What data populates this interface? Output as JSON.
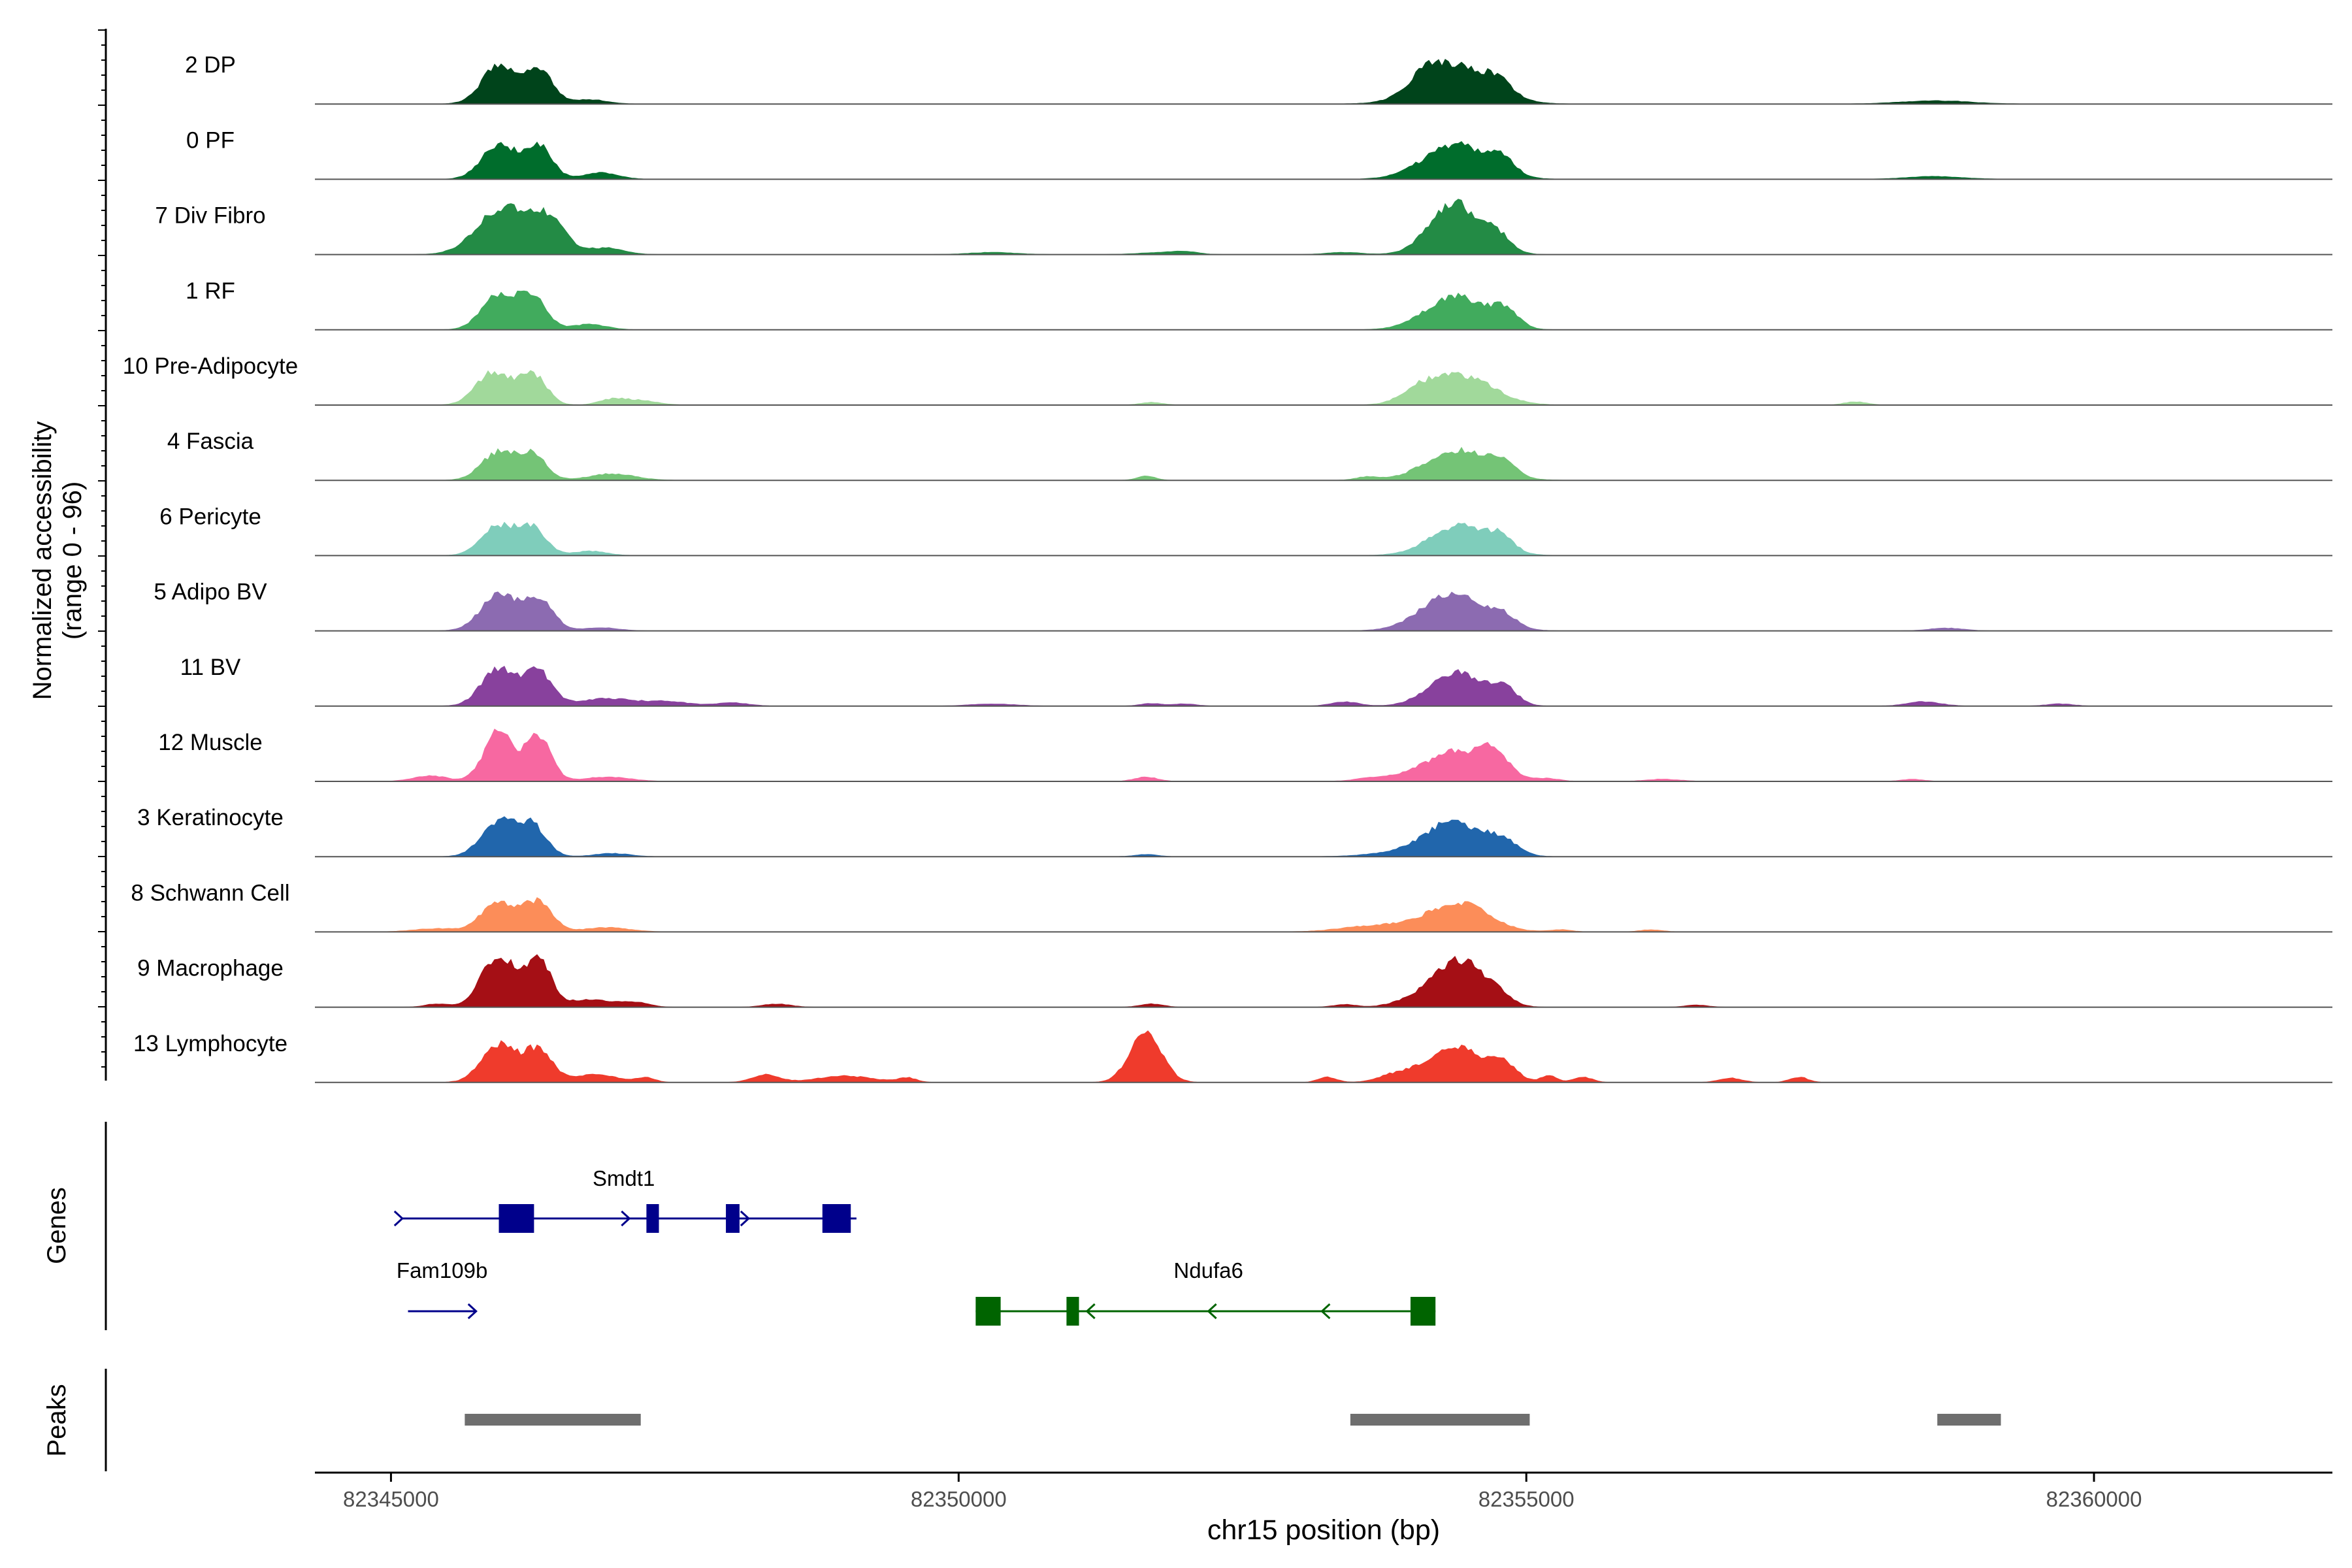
{
  "chart_data": {
    "type": "area",
    "title": "",
    "chromosome": "chr15",
    "xlabel": "chr15 position (bp)",
    "ylabel_line1": "Normalized accessibility",
    "ylabel_line2": "(range 0 - 96)",
    "ylim": [
      0,
      96
    ],
    "xlim": [
      82344330,
      82362100
    ],
    "x_ticks": [
      82345000,
      82350000,
      82355000,
      82360000
    ],
    "x_tick_labels": [
      "82345000",
      "82350000",
      "82355000",
      "82360000"
    ],
    "genes_label": "Genes",
    "peaks_label": "Peaks",
    "tracks": [
      {
        "name": "2 DP",
        "color": "#00441b",
        "peaks": [
          [
            82345950,
            150,
            70
          ],
          [
            82346300,
            120,
            65
          ],
          [
            82354380,
            300,
            68
          ],
          [
            82354120,
            150,
            25
          ],
          [
            82354750,
            120,
            22
          ],
          [
            82346750,
            150,
            8
          ],
          [
            82358600,
            300,
            6
          ]
        ]
      },
      {
        "name": "0 PF",
        "color": "#006d2c",
        "peaks": [
          [
            82345950,
            150,
            65
          ],
          [
            82346300,
            120,
            60
          ],
          [
            82354380,
            280,
            64
          ],
          [
            82354780,
            110,
            28
          ],
          [
            82346850,
            150,
            12
          ],
          [
            82358600,
            250,
            5
          ]
        ]
      },
      {
        "name": "7 Div Fibro",
        "color": "#238b45",
        "peaks": [
          [
            82345980,
            220,
            85
          ],
          [
            82346380,
            160,
            60
          ],
          [
            82354360,
            210,
            96
          ],
          [
            82354750,
            120,
            30
          ],
          [
            82346900,
            150,
            12
          ],
          [
            82350300,
            200,
            4
          ],
          [
            82351800,
            200,
            4
          ],
          [
            82352000,
            100,
            4
          ],
          [
            82353400,
            150,
            4
          ]
        ]
      },
      {
        "name": "1 RF",
        "color": "#41ab5d",
        "peaks": [
          [
            82345950,
            150,
            64
          ],
          [
            82346250,
            120,
            58
          ],
          [
            82354380,
            260,
            62
          ],
          [
            82354820,
            110,
            30
          ],
          [
            82346750,
            150,
            10
          ]
        ]
      },
      {
        "name": "10 Pre-Adipocyte",
        "color": "#a1d99b",
        "peaks": [
          [
            82345900,
            150,
            60
          ],
          [
            82346250,
            120,
            55
          ],
          [
            82354420,
            280,
            55
          ],
          [
            82354050,
            150,
            18
          ],
          [
            82346950,
            120,
            10
          ],
          [
            82347200,
            150,
            8
          ],
          [
            82351700,
            100,
            5
          ],
          [
            82357900,
            100,
            6
          ]
        ]
      },
      {
        "name": "4 Fascia",
        "color": "#74c476",
        "peaks": [
          [
            82345950,
            150,
            52
          ],
          [
            82346250,
            120,
            45
          ],
          [
            82354400,
            280,
            55
          ],
          [
            82354800,
            110,
            22
          ],
          [
            82346950,
            200,
            12
          ],
          [
            82351650,
            80,
            8
          ],
          [
            82353600,
            100,
            6
          ]
        ]
      },
      {
        "name": "6 Pericyte",
        "color": "#7fcdbb",
        "peaks": [
          [
            82345950,
            150,
            55
          ],
          [
            82346250,
            120,
            48
          ],
          [
            82354420,
            260,
            55
          ],
          [
            82354780,
            110,
            22
          ],
          [
            82346750,
            150,
            8
          ]
        ]
      },
      {
        "name": "5 Adipo BV",
        "color": "#8c6bb1",
        "peaks": [
          [
            82345950,
            160,
            65
          ],
          [
            82346300,
            130,
            58
          ],
          [
            82354360,
            270,
            70
          ],
          [
            82354800,
            120,
            18
          ],
          [
            82346850,
            150,
            6
          ],
          [
            82358700,
            150,
            5
          ]
        ]
      },
      {
        "name": "11 BV",
        "color": "#88419d",
        "peaks": [
          [
            82345950,
            150,
            70
          ],
          [
            82346300,
            120,
            62
          ],
          [
            82354380,
            230,
            62
          ],
          [
            82354800,
            120,
            30
          ],
          [
            82346900,
            250,
            14
          ],
          [
            82347450,
            180,
            8
          ],
          [
            82348000,
            150,
            6
          ],
          [
            82350300,
            200,
            4
          ],
          [
            82351700,
            100,
            5
          ],
          [
            82352000,
            100,
            4
          ],
          [
            82353400,
            120,
            8
          ],
          [
            82358500,
            150,
            8
          ],
          [
            82359700,
            120,
            4
          ]
        ]
      },
      {
        "name": "12 Muscle",
        "color": "#f768a1",
        "peaks": [
          [
            82345950,
            130,
            92
          ],
          [
            82346300,
            110,
            84
          ],
          [
            82354400,
            300,
            56
          ],
          [
            82354720,
            110,
            32
          ],
          [
            82345350,
            150,
            10
          ],
          [
            82346900,
            200,
            8
          ],
          [
            82351650,
            100,
            8
          ],
          [
            82353650,
            150,
            6
          ],
          [
            82355200,
            100,
            4
          ],
          [
            82356200,
            150,
            4
          ],
          [
            82358400,
            100,
            4
          ]
        ]
      },
      {
        "name": "3 Keratinocyte",
        "color": "#2166ac",
        "peaks": [
          [
            82345950,
            150,
            65
          ],
          [
            82346250,
            120,
            55
          ],
          [
            82354360,
            260,
            64
          ],
          [
            82354800,
            130,
            22
          ],
          [
            82346950,
            150,
            6
          ],
          [
            82351650,
            100,
            4
          ],
          [
            82353800,
            250,
            5
          ]
        ]
      },
      {
        "name": "8 Schwann Cell",
        "color": "#fc8d59",
        "peaks": [
          [
            82345950,
            150,
            55
          ],
          [
            82346300,
            120,
            55
          ],
          [
            82354400,
            260,
            54
          ],
          [
            82353700,
            300,
            12
          ],
          [
            82345400,
            200,
            6
          ],
          [
            82346900,
            200,
            8
          ],
          [
            82355300,
            100,
            4
          ],
          [
            82356100,
            100,
            4
          ]
        ]
      },
      {
        "name": "9 Macrophage",
        "color": "#a50f15",
        "peaks": [
          [
            82345950,
            150,
            96
          ],
          [
            82346300,
            110,
            88
          ],
          [
            82354430,
            210,
            82
          ],
          [
            82354080,
            200,
            18
          ],
          [
            82354750,
            120,
            14
          ],
          [
            82346750,
            200,
            14
          ],
          [
            82347150,
            120,
            8
          ],
          [
            82345400,
            100,
            6
          ],
          [
            82348400,
            120,
            6
          ],
          [
            82351700,
            100,
            6
          ],
          [
            82353400,
            100,
            5
          ],
          [
            82356500,
            100,
            4
          ]
        ]
      },
      {
        "name": "13 Lymphocyte",
        "color": "#ef3b2c",
        "peaks": [
          [
            82345950,
            150,
            70
          ],
          [
            82346300,
            120,
            60
          ],
          [
            82351650,
            140,
            92
          ],
          [
            82354380,
            260,
            64
          ],
          [
            82354800,
            110,
            26
          ],
          [
            82346800,
            200,
            14
          ],
          [
            82347250,
            80,
            8
          ],
          [
            82348300,
            120,
            14
          ],
          [
            82349000,
            250,
            12
          ],
          [
            82349550,
            80,
            8
          ],
          [
            82353250,
            80,
            10
          ],
          [
            82353850,
            150,
            12
          ],
          [
            82355200,
            70,
            12
          ],
          [
            82355500,
            80,
            10
          ],
          [
            82356800,
            100,
            8
          ],
          [
            82357400,
            80,
            10
          ]
        ]
      }
    ],
    "genes": [
      {
        "name": "Smdt1",
        "color": "#00008b",
        "strand": "+",
        "start": 82345100,
        "end": 82349100,
        "exons": [
          [
            82345950,
            82346260,
            "cds"
          ],
          [
            82347250,
            82347360,
            "cds"
          ],
          [
            82347950,
            82348070,
            "cds"
          ],
          [
            82348800,
            82349050,
            "cds"
          ]
        ],
        "arrows": [
          82345100,
          82347100,
          82348150
        ]
      },
      {
        "name": "Fam109b",
        "color": "#00008b",
        "strand": "+",
        "start": 82345150,
        "end": 82345750,
        "exons": [],
        "arrows": [
          82345750
        ]
      },
      {
        "name": "Ndufa6",
        "color": "#006400",
        "strand": "-",
        "start": 82350150,
        "end": 82354200,
        "exons": [
          [
            82350150,
            82350370,
            "cds"
          ],
          [
            82350950,
            82351060,
            "cds"
          ],
          [
            82353980,
            82354200,
            "cds"
          ]
        ],
        "arrows": [
          82351130,
          82352200,
          82353200
        ]
      }
    ],
    "peaks_regions": [
      [
        82345650,
        82347200
      ],
      [
        82353450,
        82355030
      ],
      [
        82358620,
        82359180
      ]
    ]
  }
}
